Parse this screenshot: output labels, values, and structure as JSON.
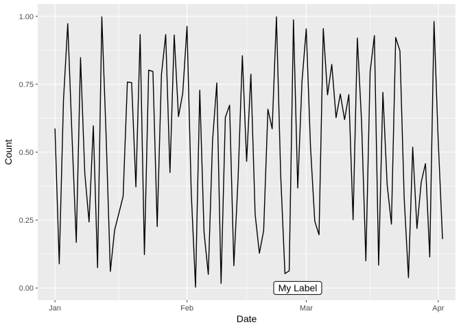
{
  "colors": {
    "panel_background": "#EBEBEB",
    "grid_major": "#FFFFFF",
    "line": "#000000",
    "tick_label": "#4D4D4D",
    "label_fill": "#FFFFFF"
  },
  "chart_data": {
    "type": "line",
    "xlabel": "Date",
    "ylabel": "Count",
    "xlim": [
      "2017-01-01",
      "2017-04-01"
    ],
    "ylim": [
      0,
      1
    ],
    "x_ticks": [
      {
        "date": "2017-01-01",
        "label": "Jan"
      },
      {
        "date": "2017-02-01",
        "label": "Feb"
      },
      {
        "date": "2017-03-01",
        "label": "Mar"
      },
      {
        "date": "2017-04-01",
        "label": "Apr"
      }
    ],
    "x_minor_ticks": [
      "2017-01-16",
      "2017-02-15",
      "2017-03-16"
    ],
    "y_ticks": [
      {
        "value": 0,
        "label": "0.00"
      },
      {
        "value": 0.25,
        "label": "0.25"
      },
      {
        "value": 0.5,
        "label": "0.50"
      },
      {
        "value": 0.75,
        "label": "0.75"
      },
      {
        "value": 1,
        "label": "1.00"
      }
    ],
    "y_minor_ticks": [
      0.125,
      0.375,
      0.625,
      0.875
    ],
    "grid": true,
    "series": [
      {
        "x_start": "2017-01-01",
        "x_step_days": 1,
        "values": [
          0.587,
          0.089,
          0.693,
          0.973,
          0.559,
          0.168,
          0.848,
          0.422,
          0.243,
          0.597,
          0.075,
          0.998,
          0.564,
          0.061,
          0.213,
          0.275,
          0.337,
          0.758,
          0.756,
          0.372,
          0.933,
          0.123,
          0.802,
          0.797,
          0.226,
          0.786,
          0.933,
          0.425,
          0.931,
          0.631,
          0.717,
          0.963,
          0.351,
          0.003,
          0.728,
          0.206,
          0.05,
          0.543,
          0.755,
          0.017,
          0.628,
          0.673,
          0.082,
          0.405,
          0.855,
          0.466,
          0.787,
          0.271,
          0.128,
          0.211,
          0.658,
          0.586,
          0.998,
          0.416,
          0.053,
          0.063,
          0.987,
          0.368,
          0.76,
          0.954,
          0.52,
          0.246,
          0.196,
          0.955,
          0.711,
          0.823,
          0.627,
          0.714,
          0.62,
          0.712,
          0.251,
          0.92,
          0.609,
          0.1,
          0.796,
          0.929,
          0.084,
          0.72,
          0.38,
          0.235,
          0.922,
          0.873,
          0.33,
          0.038,
          0.518,
          0.219,
          0.39,
          0.458,
          0.114,
          0.981,
          0.538,
          0.18
        ]
      }
    ],
    "annotations": [
      {
        "text": "My Label",
        "x": "2017-02-27",
        "y": 0
      }
    ]
  }
}
